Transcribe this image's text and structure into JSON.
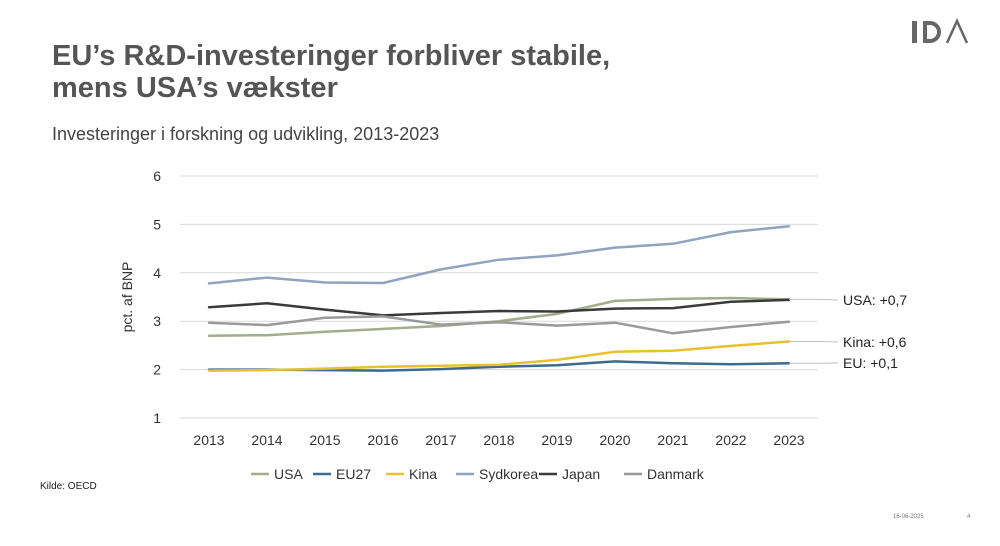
{
  "header": {
    "title_line1": "EU’s R&D-investeringer forbliver stabile,",
    "title_line2": "mens USA’s vækster",
    "subtitle": "Investeringer i forskning og udvikling, 2013-2023"
  },
  "footer": {
    "source": "Kilde: OECD",
    "date": "16-06-2025",
    "page": "4"
  },
  "colors": {
    "USA": "#a2ad8a",
    "EU27": "#3e6a8f",
    "Kina": "#e8c12d",
    "Sydkorea": "#8ea4bf",
    "Japan": "#3a3a3a",
    "Danmark": "#9a9a9a",
    "grid": "#d9d9d9",
    "annot_line": "#bfbfbf",
    "logo": "#666666"
  },
  "chart_data": {
    "type": "line",
    "title": "Investeringer i forskning og udvikling, 2013-2023",
    "xlabel": "",
    "ylabel": "pct. af BNP",
    "ylim": [
      1,
      6
    ],
    "yticks": [
      "1",
      "2",
      "3",
      "4",
      "5",
      "6"
    ],
    "grid": true,
    "legend": "bottom",
    "x": [
      "2013",
      "2014",
      "2015",
      "2016",
      "2017",
      "2018",
      "2019",
      "2020",
      "2021",
      "2022",
      "2023"
    ],
    "series": [
      {
        "name": "USA",
        "values": [
          2.7,
          2.71,
          2.78,
          2.84,
          2.9,
          3.0,
          3.15,
          3.42,
          3.46,
          3.48,
          3.45
        ]
      },
      {
        "name": "EU27",
        "values": [
          2.0,
          2.0,
          1.99,
          1.98,
          2.01,
          2.06,
          2.09,
          2.17,
          2.13,
          2.11,
          2.13
        ]
      },
      {
        "name": "Kina",
        "values": [
          1.98,
          1.99,
          2.02,
          2.06,
          2.08,
          2.1,
          2.2,
          2.37,
          2.39,
          2.49,
          2.58
        ]
      },
      {
        "name": "Sydkorea",
        "values": [
          3.78,
          3.9,
          3.8,
          3.79,
          4.07,
          4.27,
          4.36,
          4.52,
          4.6,
          4.84,
          4.96
        ]
      },
      {
        "name": "Japan",
        "values": [
          3.29,
          3.37,
          3.24,
          3.12,
          3.17,
          3.21,
          3.2,
          3.26,
          3.27,
          3.4,
          3.44
        ]
      },
      {
        "name": "Danmark",
        "values": [
          2.97,
          2.92,
          3.07,
          3.1,
          2.93,
          2.98,
          2.91,
          2.97,
          2.75,
          2.88,
          2.99
        ]
      }
    ],
    "annotations": [
      {
        "text": "USA: +0,7",
        "series": "USA",
        "value": 3.45
      },
      {
        "text": "Kina: +0,6",
        "series": "Kina",
        "value": 2.58
      },
      {
        "text": "EU: +0,1",
        "series": "EU27",
        "value": 2.13
      }
    ]
  }
}
